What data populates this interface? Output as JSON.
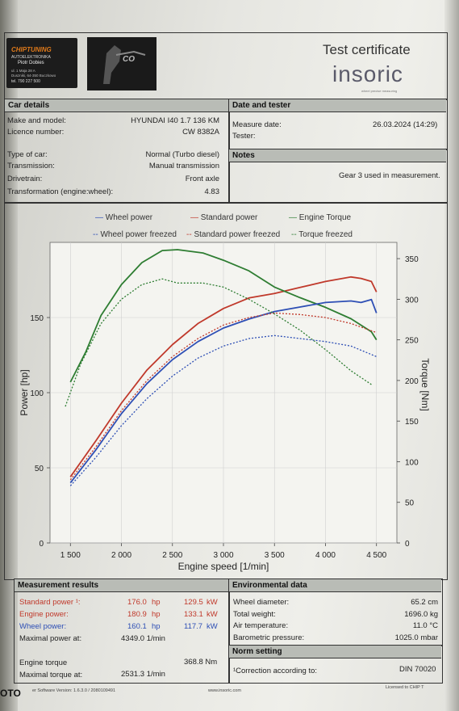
{
  "header": {
    "logo_text": "CHIPTUNING",
    "logo_sub": "AUTOELEKTRONIKA",
    "logo_name": "Piotr Dobies",
    "logo_addr1": "ul. 1 Maja 28 A",
    "logo_addr2": "Duszniki, 64-350 Buczkowo",
    "logo_phone": "tel. 790 227 500",
    "logo2_text": "CO",
    "title": "Test certificate",
    "brand": "insoric",
    "brand_tag": "wheel precise measuring"
  },
  "car_details": {
    "heading": "Car details",
    "rows": [
      {
        "label": "Make and model:",
        "value": "HYUNDAI  I40   1.7  136 KM"
      },
      {
        "label": "Licence number:",
        "value": "CW 8382A"
      },
      {
        "label": "Type of car:",
        "value": "Normal (Turbo diesel)"
      },
      {
        "label": "Transmission:",
        "value": "Manual transmission"
      },
      {
        "label": "Drivetrain:",
        "value": "Front axle"
      },
      {
        "label": "Transformation (engine:wheel):",
        "value": "4.83"
      }
    ]
  },
  "date_tester": {
    "heading": "Date and tester",
    "measure_label": "Measure date:",
    "measure_value": "26.03.2024 (14:29)",
    "tester_label": "Tester:"
  },
  "notes": {
    "heading": "Notes",
    "text": "Gear 3 used in measurement."
  },
  "legend": {
    "wheel_power": "Wheel power",
    "standard_power": "Standard power",
    "engine_torque": "Engine Torque",
    "wheel_power_frozen": "Wheel power freezed",
    "standard_power_frozen": "Standard power freezed",
    "torque_frozen": "Torque freezed"
  },
  "chart_data": {
    "type": "line",
    "xlabel": "Engine speed [1/min]",
    "ylabel": "Power [hp]",
    "y2label": "Torque [Nm]",
    "xlim": [
      1300,
      4700
    ],
    "ylim": [
      0,
      200
    ],
    "y2lim": [
      0,
      370
    ],
    "xticks": [
      "1 500",
      "2 000",
      "2 500",
      "3 000",
      "3 500",
      "4 000",
      "4 500"
    ],
    "xtick_values": [
      1500,
      2000,
      2500,
      3000,
      3500,
      4000,
      4500
    ],
    "yticks": [
      0,
      50,
      100,
      150
    ],
    "y2ticks": [
      0,
      50,
      100,
      150,
      200,
      250,
      300,
      350
    ],
    "series": [
      {
        "name": "Standard power",
        "axis": "left",
        "color": "#c0392b",
        "dash": false,
        "x": [
          1500,
          1750,
          2000,
          2250,
          2500,
          2750,
          3000,
          3250,
          3500,
          3750,
          4000,
          4250,
          4349,
          4450,
          4500
        ],
        "y": [
          44,
          68,
          93,
          115,
          132,
          146,
          156,
          163,
          166,
          170,
          174,
          177,
          176,
          174,
          167
        ]
      },
      {
        "name": "Engine Torque",
        "axis": "right",
        "color": "#2e7d32",
        "dash": false,
        "x": [
          1500,
          1650,
          1800,
          2000,
          2200,
          2400,
          2550,
          2800,
          3000,
          3250,
          3500,
          3750,
          4000,
          4250,
          4450,
          4500
        ],
        "y": [
          198,
          235,
          280,
          318,
          345,
          360,
          361,
          357,
          348,
          335,
          315,
          302,
          290,
          276,
          260,
          250
        ]
      },
      {
        "name": "Wheel power",
        "axis": "left",
        "color": "#2e4fb5",
        "dash": false,
        "x": [
          1500,
          1750,
          2000,
          2250,
          2500,
          2750,
          3000,
          3250,
          3500,
          3750,
          4000,
          4250,
          4349,
          4450,
          4500
        ],
        "y": [
          40,
          62,
          86,
          106,
          122,
          134,
          143,
          149,
          154,
          157,
          160,
          161,
          160,
          162,
          153
        ]
      },
      {
        "name": "Standard power freezed",
        "axis": "left",
        "color": "#c0392b",
        "dash": true,
        "x": [
          1500,
          1750,
          2000,
          2250,
          2500,
          2750,
          3000,
          3250,
          3500,
          3750,
          4000,
          4250,
          4500
        ],
        "y": [
          42,
          64,
          88,
          108,
          124,
          136,
          145,
          150,
          153,
          152,
          150,
          146,
          140
        ]
      },
      {
        "name": "Torque freezed",
        "axis": "right",
        "color": "#2e7d32",
        "dash": true,
        "x": [
          1450,
          1600,
          1800,
          2000,
          2200,
          2400,
          2550,
          2800,
          3000,
          3250,
          3500,
          3750,
          4000,
          4250,
          4450
        ],
        "y": [
          168,
          220,
          270,
          300,
          318,
          325,
          320,
          320,
          315,
          300,
          282,
          262,
          238,
          212,
          195
        ]
      },
      {
        "name": "Wheel power freezed",
        "axis": "left",
        "color": "#2e4fb5",
        "dash": true,
        "x": [
          1500,
          1750,
          2000,
          2250,
          2500,
          2750,
          3000,
          3250,
          3500,
          3750,
          4000,
          4250,
          4500
        ],
        "y": [
          38,
          57,
          78,
          96,
          111,
          123,
          131,
          136,
          138,
          136,
          134,
          131,
          124
        ]
      }
    ]
  },
  "measurement": {
    "heading": "Measurement results",
    "rows": [
      {
        "label": "Standard power ¹:",
        "hp": "176.0",
        "hp_unit": "hp",
        "kw": "129.5",
        "kw_unit": "kW"
      },
      {
        "label": "Engine power:",
        "hp": "180.9",
        "hp_unit": "hp",
        "kw": "133.1",
        "kw_unit": "kW"
      },
      {
        "label": "Wheel power:",
        "hp": "160.1",
        "hp_unit": "hp",
        "kw": "117.7",
        "kw_unit": "kW"
      }
    ],
    "max_power_label": "Maximal power at:",
    "max_power_value": "4349.0  1/min",
    "engine_torque_label": "Engine torque",
    "engine_torque_value": "368.8  Nm",
    "max_torque_label": "Maximal torque at:",
    "max_torque_value": "2531.3  1/min"
  },
  "environment": {
    "heading": "Environmental data",
    "rows": [
      {
        "label": "Wheel diameter:",
        "value": "65.2  cm"
      },
      {
        "label": "Total weight:",
        "value": "1696.0  kg"
      },
      {
        "label": "Air temperature:",
        "value": "11.0  °C"
      },
      {
        "label": "Barometric pressure:",
        "value": "1025.0  mbar"
      }
    ]
  },
  "norm": {
    "heading": "Norm setting",
    "label": "¹Correction according to:",
    "value": "DIN 70020"
  },
  "footer": {
    "left": "OTO",
    "software": "er Software Version: 1.6.3.0 / 2080109491",
    "url": "www.insoric.com",
    "licensed": "Licensed to CHIP T"
  }
}
